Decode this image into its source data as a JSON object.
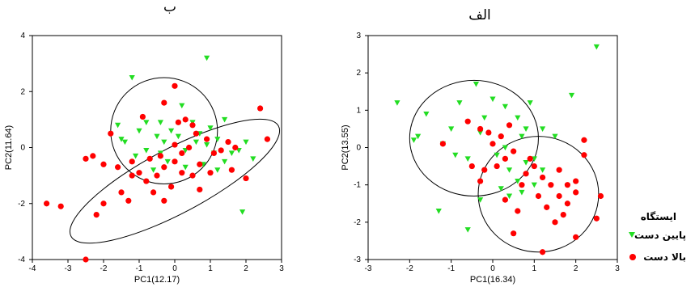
{
  "colors": {
    "downstream": "#22dd22",
    "upstream": "#ff0000",
    "frame": "#000000"
  },
  "chart_data": [
    {
      "type": "scatter",
      "title": "ب",
      "xlabel": "PC1(12.17)",
      "ylabel": "PC2(11.64)",
      "xlim": [
        -4,
        3
      ],
      "ylim": [
        -4,
        4
      ],
      "xticks": [
        -4,
        -3,
        -2,
        -1,
        0,
        1,
        2,
        3
      ],
      "yticks": [
        -4,
        -2,
        0,
        2,
        4
      ],
      "ellipses": [
        {
          "cx": -0.3,
          "cy": 0.6,
          "rx": 1.5,
          "ry": 1.9,
          "angle": 0
        },
        {
          "cx": 0.0,
          "cy": -1.2,
          "rx": 3.3,
          "ry": 1.15,
          "angle": 28
        }
      ],
      "series": [
        {
          "name": "پایین دست",
          "color_key": "downstream",
          "marker": "triangle",
          "points": [
            [
              -1.2,
              2.5
            ],
            [
              -0.4,
              0.9
            ],
            [
              0.2,
              1.5
            ],
            [
              0.9,
              3.2
            ],
            [
              -1.6,
              0.8
            ],
            [
              -1.4,
              0.2
            ],
            [
              -1.0,
              0.6
            ],
            [
              -0.8,
              -0.1
            ],
            [
              -0.5,
              0.4
            ],
            [
              -0.3,
              0.2
            ],
            [
              -0.1,
              0.6
            ],
            [
              0.1,
              0.4
            ],
            [
              0.3,
              -0.1
            ],
            [
              0.5,
              0.9
            ],
            [
              0.7,
              0.5
            ],
            [
              0.9,
              0.1
            ],
            [
              1.0,
              0.7
            ],
            [
              1.2,
              0.3
            ],
            [
              1.4,
              1.0
            ],
            [
              1.6,
              -0.2
            ],
            [
              1.8,
              -0.1
            ],
            [
              2.0,
              0.2
            ],
            [
              1.4,
              -0.5
            ],
            [
              1.2,
              -0.8
            ],
            [
              -0.2,
              -0.5
            ],
            [
              0.3,
              -0.7
            ],
            [
              -0.6,
              -0.8
            ],
            [
              -1.1,
              -0.3
            ],
            [
              0.8,
              -0.6
            ],
            [
              2.2,
              -0.4
            ],
            [
              -0.8,
              0.9
            ],
            [
              -1.5,
              0.3
            ],
            [
              0.6,
              0.2
            ],
            [
              1.9,
              -2.3
            ],
            [
              -0.4,
              -0.2
            ],
            [
              1.1,
              -0.2
            ]
          ]
        },
        {
          "name": "بالا دست",
          "color_key": "upstream",
          "marker": "dot",
          "points": [
            [
              0.0,
              2.2
            ],
            [
              -0.3,
              1.6
            ],
            [
              0.3,
              1.0
            ],
            [
              -0.9,
              1.1
            ],
            [
              2.4,
              1.4
            ],
            [
              2.6,
              0.3
            ],
            [
              -1.8,
              0.5
            ],
            [
              -2.3,
              -0.3
            ],
            [
              -2.5,
              -0.4
            ],
            [
              -2.0,
              -0.6
            ],
            [
              -1.6,
              -0.7
            ],
            [
              -1.2,
              -0.5
            ],
            [
              -1.0,
              -0.9
            ],
            [
              -0.8,
              -1.2
            ],
            [
              -0.5,
              -1.0
            ],
            [
              -0.3,
              -0.7
            ],
            [
              0.0,
              -0.5
            ],
            [
              0.2,
              -0.9
            ],
            [
              0.5,
              -1.0
            ],
            [
              0.7,
              -0.6
            ],
            [
              0.9,
              0.3
            ],
            [
              1.1,
              -0.2
            ],
            [
              0.6,
              0.5
            ],
            [
              0.4,
              0.0
            ],
            [
              0.0,
              0.1
            ],
            [
              -0.4,
              -0.3
            ],
            [
              1.3,
              -0.1
            ],
            [
              1.5,
              0.2
            ],
            [
              1.7,
              0.0
            ],
            [
              2.0,
              -1.1
            ],
            [
              -1.5,
              -1.6
            ],
            [
              -2.0,
              -2.0
            ],
            [
              -2.2,
              -2.4
            ],
            [
              -1.3,
              -1.9
            ],
            [
              -0.6,
              -1.6
            ],
            [
              -0.3,
              -1.9
            ],
            [
              -0.1,
              -1.4
            ],
            [
              -3.6,
              -2.0
            ],
            [
              -3.2,
              -2.1
            ],
            [
              -2.5,
              -4.0
            ],
            [
              0.5,
              0.8
            ],
            [
              0.7,
              -1.5
            ],
            [
              1.6,
              -0.8
            ],
            [
              -1.2,
              -1.0
            ],
            [
              -0.7,
              -0.4
            ],
            [
              0.2,
              -0.2
            ],
            [
              1.0,
              -0.9
            ],
            [
              0.1,
              0.9
            ]
          ]
        }
      ]
    },
    {
      "type": "scatter",
      "title": "الف",
      "xlabel": "PC1(16.34)",
      "ylabel": "PC2(13.55)",
      "xlim": [
        -3,
        3
      ],
      "ylim": [
        -3,
        3
      ],
      "xticks": [
        -3,
        -2,
        -1,
        0,
        1,
        2,
        3
      ],
      "yticks": [
        -3,
        -2,
        -1,
        0,
        1,
        2,
        3
      ],
      "ellipses": [
        {
          "cx": -0.45,
          "cy": 0.25,
          "rx": 1.55,
          "ry": 1.55,
          "angle": 0
        },
        {
          "cx": 1.1,
          "cy": -1.25,
          "rx": 1.45,
          "ry": 1.55,
          "angle": 0
        }
      ],
      "series": [
        {
          "name": "پایین دست",
          "color_key": "downstream",
          "marker": "triangle",
          "points": [
            [
              -2.3,
              1.2
            ],
            [
              -1.8,
              0.3
            ],
            [
              -1.9,
              0.2
            ],
            [
              -1.6,
              0.9
            ],
            [
              -1.0,
              0.5
            ],
            [
              -1.2,
              0.1
            ],
            [
              -0.8,
              1.2
            ],
            [
              -0.4,
              1.7
            ],
            [
              -0.2,
              0.8
            ],
            [
              0.0,
              1.3
            ],
            [
              0.3,
              1.1
            ],
            [
              0.6,
              0.8
            ],
            [
              0.8,
              0.5
            ],
            [
              0.9,
              1.2
            ],
            [
              1.2,
              0.5
            ],
            [
              1.5,
              0.3
            ],
            [
              1.9,
              1.4
            ],
            [
              0.7,
              0.3
            ],
            [
              0.3,
              0.0
            ],
            [
              0.1,
              -0.2
            ],
            [
              0.4,
              -0.6
            ],
            [
              0.6,
              -0.9
            ],
            [
              0.8,
              -0.4
            ],
            [
              1.0,
              -1.0
            ],
            [
              1.2,
              -0.6
            ],
            [
              0.2,
              -1.1
            ],
            [
              0.4,
              -1.3
            ],
            [
              -0.3,
              -1.4
            ],
            [
              0.7,
              -1.2
            ],
            [
              -0.6,
              -0.3
            ],
            [
              -0.9,
              -0.2
            ],
            [
              -1.3,
              -1.7
            ],
            [
              -0.6,
              -2.2
            ],
            [
              2.5,
              2.7
            ],
            [
              -0.3,
              0.4
            ],
            [
              1.0,
              -0.3
            ]
          ]
        },
        {
          "name": "بالا دست",
          "color_key": "upstream",
          "marker": "dot",
          "points": [
            [
              -1.2,
              0.1
            ],
            [
              -0.6,
              0.7
            ],
            [
              -0.3,
              0.5
            ],
            [
              0.0,
              0.1
            ],
            [
              0.2,
              0.3
            ],
            [
              0.4,
              0.6
            ],
            [
              -0.5,
              -0.5
            ],
            [
              -0.2,
              -0.6
            ],
            [
              0.1,
              -0.5
            ],
            [
              0.3,
              -0.3
            ],
            [
              0.5,
              -0.1
            ],
            [
              0.8,
              -0.7
            ],
            [
              1.0,
              -0.5
            ],
            [
              1.2,
              -0.8
            ],
            [
              1.4,
              -1.0
            ],
            [
              1.6,
              -0.6
            ],
            [
              1.8,
              -1.0
            ],
            [
              2.0,
              -0.9
            ],
            [
              1.1,
              -1.3
            ],
            [
              1.3,
              -1.6
            ],
            [
              1.5,
              -2.0
            ],
            [
              1.8,
              -1.5
            ],
            [
              2.0,
              -1.2
            ],
            [
              2.2,
              -0.2
            ],
            [
              2.6,
              -1.3
            ],
            [
              2.5,
              -1.9
            ],
            [
              2.0,
              -2.4
            ],
            [
              1.2,
              -2.8
            ],
            [
              0.5,
              -2.3
            ],
            [
              0.7,
              -1.0
            ],
            [
              0.3,
              -1.4
            ],
            [
              0.6,
              -1.7
            ],
            [
              -0.3,
              -0.9
            ],
            [
              -0.1,
              0.4
            ],
            [
              0.9,
              -0.3
            ],
            [
              1.7,
              -1.8
            ],
            [
              2.2,
              0.2
            ],
            [
              1.6,
              -1.3
            ]
          ]
        }
      ]
    }
  ],
  "legend": {
    "title": "ایستگاه",
    "items": [
      "پایین دست",
      "بالا دست"
    ]
  }
}
